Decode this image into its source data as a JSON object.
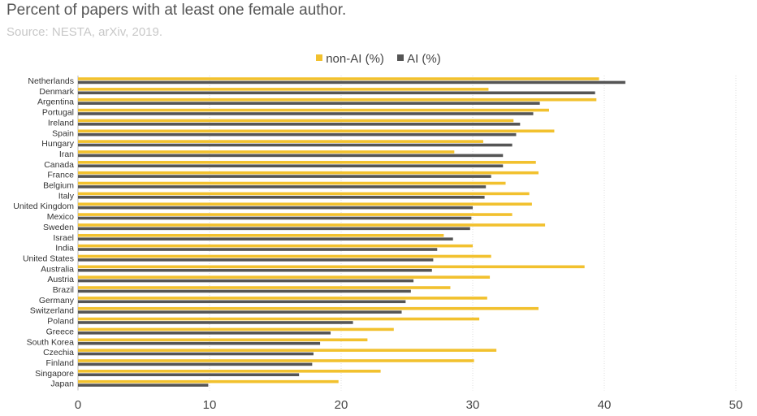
{
  "chart_data": {
    "type": "bar",
    "orientation": "horizontal",
    "title": "Percent of papers with at least one female author.",
    "subtitle": "Source: NESTA, arXiv, 2019.",
    "categories": [
      "Netherlands",
      "Denmark",
      "Argentina",
      "Portugal",
      "Ireland",
      "Spain",
      "Hungary",
      "Iran",
      "Canada",
      "France",
      "Belgium",
      "Italy",
      "United Kingdom",
      "Mexico",
      "Sweden",
      "Israel",
      "India",
      "United States",
      "Australia",
      "Austria",
      "Brazil",
      "Germany",
      "Switzerland",
      "Poland",
      "Greece",
      "South Korea",
      "Czechia",
      "Finland",
      "Singapore",
      "Japan"
    ],
    "series": [
      {
        "name": "non-AI (%)",
        "color": "#f2c12e",
        "values": [
          39.6,
          31.2,
          39.4,
          35.8,
          33.1,
          36.2,
          30.8,
          28.6,
          34.8,
          35.0,
          32.5,
          34.3,
          34.5,
          33.0,
          35.5,
          27.8,
          30.0,
          31.4,
          38.5,
          31.3,
          28.3,
          31.1,
          35.0,
          30.5,
          24.0,
          22.0,
          31.8,
          30.1,
          23.0,
          19.8
        ]
      },
      {
        "name": "AI (%)",
        "color": "#555555",
        "values": [
          41.6,
          39.3,
          35.1,
          34.6,
          33.6,
          33.3,
          33.0,
          32.3,
          32.3,
          31.4,
          31.0,
          30.9,
          30.0,
          29.9,
          29.8,
          28.5,
          27.3,
          27.0,
          26.9,
          25.5,
          25.3,
          24.9,
          24.6,
          20.9,
          19.2,
          18.4,
          17.9,
          17.8,
          16.8,
          9.9
        ]
      }
    ],
    "xlim": [
      0,
      50
    ],
    "xticks": [
      "0",
      "10",
      "20",
      "30",
      "40",
      "50"
    ],
    "grid": "vertical dotted",
    "legend_position": "top"
  }
}
